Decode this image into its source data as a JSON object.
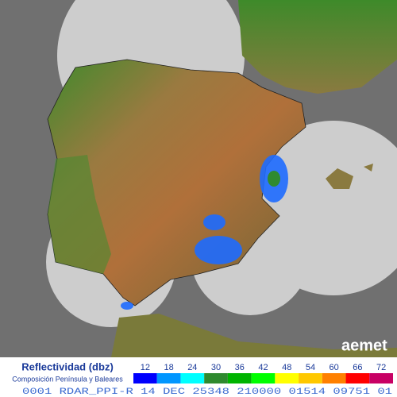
{
  "logo": "aemet",
  "legend": {
    "title": "Reflectividad (dbz)",
    "subtitle": "Composición Península y Baleares",
    "entries": [
      {
        "value": 12,
        "color": "#0000fe"
      },
      {
        "value": 18,
        "color": "#0096ff"
      },
      {
        "value": 24,
        "color": "#00ffff"
      },
      {
        "value": 30,
        "color": "#2f8a2f"
      },
      {
        "value": 36,
        "color": "#00b400"
      },
      {
        "value": 42,
        "color": "#00ff00"
      },
      {
        "value": 48,
        "color": "#ffff00"
      },
      {
        "value": 54,
        "color": "#ffc800"
      },
      {
        "value": 60,
        "color": "#ff8000"
      },
      {
        "value": 66,
        "color": "#ff0000"
      },
      {
        "value": 72,
        "color": "#c80064"
      }
    ]
  },
  "footer": "0001 RDAR_PPI-R   14 DEC 25348 210000 01514 09751 01"
}
